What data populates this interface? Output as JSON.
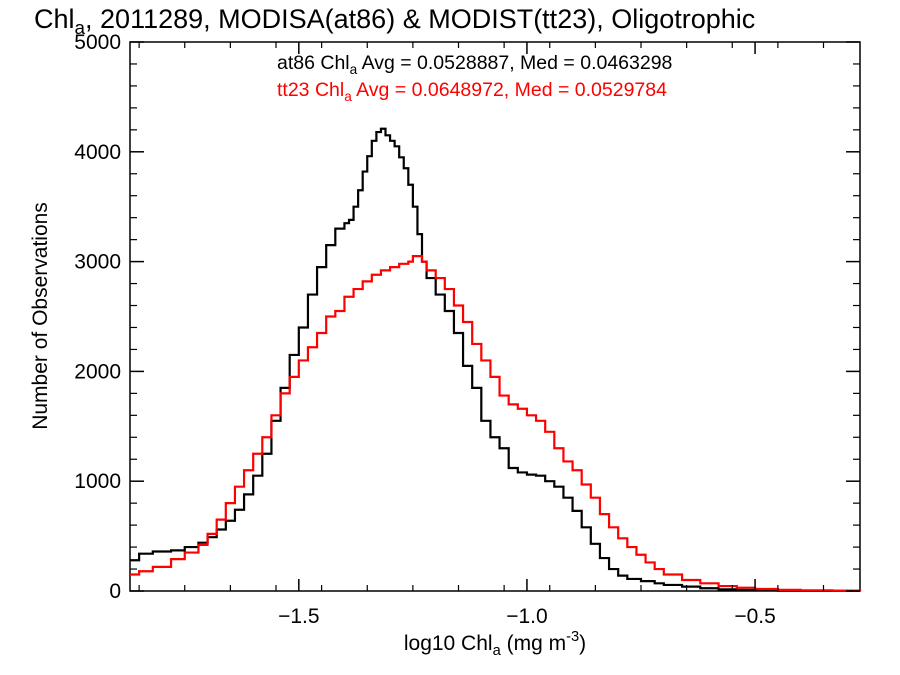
{
  "title": {
    "main": "Chl",
    "main_sub": "a",
    "rest": ", 2011289, MODISA(at86) & MODIST(tt23), Oligotrophic"
  },
  "stats": {
    "at86": {
      "prefix": "at86 Chl",
      "sub": "a",
      "rest": " Avg = 0.0528887, Med = 0.0463298",
      "color": "#000000"
    },
    "tt23": {
      "prefix": "tt23 Chl",
      "sub": "a",
      "rest": " Avg = 0.0648972, Med = 0.0529784",
      "color": "#ff0000"
    }
  },
  "axes": {
    "xlabel": {
      "pre": "log10 Chl",
      "sub": "a",
      "mid": " (mg m",
      "sup": "-3",
      "post": ")"
    },
    "ylabel": "Number of Observations"
  },
  "chart_data": {
    "type": "line",
    "drawstyle": "steps",
    "xlim": [
      -1.87,
      -0.27
    ],
    "ylim": [
      0,
      5000
    ],
    "xticks": [
      -1.5,
      -1.0,
      -0.5
    ],
    "xtick_labels": [
      "−1.5",
      "−1.0",
      "−0.5"
    ],
    "yticks": [
      0,
      1000,
      2000,
      3000,
      4000,
      5000
    ],
    "ytick_labels": [
      "0",
      "1000",
      "2000",
      "3000",
      "4000",
      "5000"
    ],
    "grid": false,
    "series": [
      {
        "name": "at86",
        "color": "#000000",
        "points": [
          [
            -1.87,
            280
          ],
          [
            -1.85,
            340
          ],
          [
            -1.82,
            360
          ],
          [
            -1.78,
            370
          ],
          [
            -1.75,
            400
          ],
          [
            -1.72,
            440
          ],
          [
            -1.7,
            490
          ],
          [
            -1.68,
            560
          ],
          [
            -1.66,
            640
          ],
          [
            -1.64,
            740
          ],
          [
            -1.62,
            880
          ],
          [
            -1.6,
            1050
          ],
          [
            -1.58,
            1250
          ],
          [
            -1.56,
            1550
          ],
          [
            -1.54,
            1850
          ],
          [
            -1.52,
            2150
          ],
          [
            -1.5,
            2400
          ],
          [
            -1.48,
            2700
          ],
          [
            -1.46,
            2950
          ],
          [
            -1.44,
            3150
          ],
          [
            -1.42,
            3300
          ],
          [
            -1.4,
            3350
          ],
          [
            -1.39,
            3380
          ],
          [
            -1.38,
            3500
          ],
          [
            -1.37,
            3650
          ],
          [
            -1.36,
            3820
          ],
          [
            -1.35,
            3960
          ],
          [
            -1.34,
            4100
          ],
          [
            -1.33,
            4180
          ],
          [
            -1.32,
            4210
          ],
          [
            -1.31,
            4150
          ],
          [
            -1.3,
            4100
          ],
          [
            -1.29,
            4050
          ],
          [
            -1.28,
            3950
          ],
          [
            -1.27,
            3850
          ],
          [
            -1.26,
            3700
          ],
          [
            -1.25,
            3500
          ],
          [
            -1.24,
            3250
          ],
          [
            -1.23,
            3000
          ],
          [
            -1.22,
            2850
          ],
          [
            -1.2,
            2700
          ],
          [
            -1.18,
            2550
          ],
          [
            -1.16,
            2350
          ],
          [
            -1.14,
            2050
          ],
          [
            -1.12,
            1850
          ],
          [
            -1.1,
            1550
          ],
          [
            -1.08,
            1400
          ],
          [
            -1.06,
            1300
          ],
          [
            -1.04,
            1120
          ],
          [
            -1.02,
            1080
          ],
          [
            -1.0,
            1060
          ],
          [
            -0.98,
            1050
          ],
          [
            -0.96,
            1000
          ],
          [
            -0.94,
            950
          ],
          [
            -0.92,
            850
          ],
          [
            -0.9,
            730
          ],
          [
            -0.88,
            580
          ],
          [
            -0.86,
            430
          ],
          [
            -0.84,
            300
          ],
          [
            -0.82,
            200
          ],
          [
            -0.8,
            140
          ],
          [
            -0.78,
            110
          ],
          [
            -0.75,
            90
          ],
          [
            -0.72,
            70
          ],
          [
            -0.7,
            55
          ],
          [
            -0.66,
            40
          ],
          [
            -0.62,
            25
          ],
          [
            -0.58,
            15
          ],
          [
            -0.54,
            10
          ],
          [
            -0.5,
            5
          ],
          [
            -0.45,
            3
          ],
          [
            -0.4,
            2
          ],
          [
            -0.33,
            1
          ],
          [
            -0.27,
            0
          ]
        ]
      },
      {
        "name": "tt23",
        "color": "#ff0000",
        "points": [
          [
            -1.87,
            150
          ],
          [
            -1.85,
            180
          ],
          [
            -1.82,
            220
          ],
          [
            -1.78,
            290
          ],
          [
            -1.75,
            350
          ],
          [
            -1.72,
            420
          ],
          [
            -1.7,
            520
          ],
          [
            -1.68,
            650
          ],
          [
            -1.66,
            800
          ],
          [
            -1.64,
            950
          ],
          [
            -1.62,
            1100
          ],
          [
            -1.6,
            1250
          ],
          [
            -1.58,
            1400
          ],
          [
            -1.56,
            1600
          ],
          [
            -1.54,
            1800
          ],
          [
            -1.52,
            1950
          ],
          [
            -1.5,
            2100
          ],
          [
            -1.48,
            2220
          ],
          [
            -1.46,
            2350
          ],
          [
            -1.44,
            2500
          ],
          [
            -1.42,
            2550
          ],
          [
            -1.4,
            2680
          ],
          [
            -1.38,
            2750
          ],
          [
            -1.36,
            2820
          ],
          [
            -1.34,
            2880
          ],
          [
            -1.32,
            2920
          ],
          [
            -1.3,
            2950
          ],
          [
            -1.28,
            2980
          ],
          [
            -1.26,
            3000
          ],
          [
            -1.25,
            3050
          ],
          [
            -1.24,
            3050
          ],
          [
            -1.23,
            3000
          ],
          [
            -1.22,
            2920
          ],
          [
            -1.2,
            2850
          ],
          [
            -1.18,
            2750
          ],
          [
            -1.16,
            2600
          ],
          [
            -1.14,
            2450
          ],
          [
            -1.12,
            2250
          ],
          [
            -1.1,
            2100
          ],
          [
            -1.08,
            1950
          ],
          [
            -1.06,
            1780
          ],
          [
            -1.04,
            1700
          ],
          [
            -1.02,
            1660
          ],
          [
            -1.0,
            1600
          ],
          [
            -0.98,
            1550
          ],
          [
            -0.96,
            1450
          ],
          [
            -0.94,
            1300
          ],
          [
            -0.92,
            1180
          ],
          [
            -0.9,
            1100
          ],
          [
            -0.88,
            970
          ],
          [
            -0.86,
            850
          ],
          [
            -0.84,
            700
          ],
          [
            -0.82,
            580
          ],
          [
            -0.8,
            480
          ],
          [
            -0.78,
            400
          ],
          [
            -0.76,
            330
          ],
          [
            -0.74,
            260
          ],
          [
            -0.72,
            200
          ],
          [
            -0.7,
            150
          ],
          [
            -0.66,
            100
          ],
          [
            -0.62,
            70
          ],
          [
            -0.58,
            45
          ],
          [
            -0.54,
            30
          ],
          [
            -0.5,
            18
          ],
          [
            -0.45,
            10
          ],
          [
            -0.4,
            6
          ],
          [
            -0.33,
            2
          ],
          [
            -0.27,
            0
          ]
        ]
      }
    ]
  }
}
